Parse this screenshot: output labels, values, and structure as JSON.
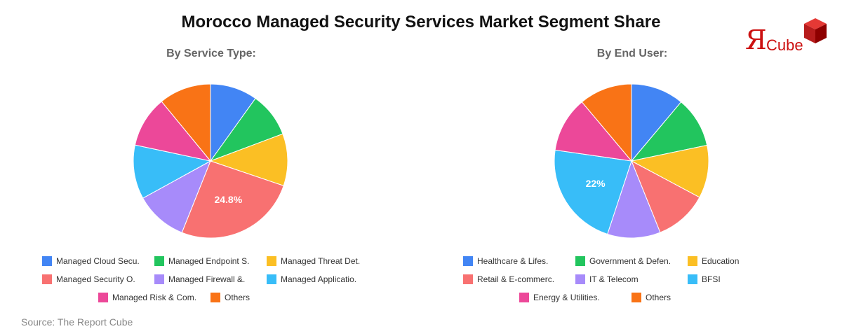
{
  "title": "Morocco Managed Security Services Market Segment Share",
  "source": "Source: The Report Cube",
  "logo": {
    "mark": "Я",
    "text": "Cube"
  },
  "chart_data": [
    {
      "type": "pie",
      "title": "By Service Type:",
      "categories": [
        "Managed Cloud Secu.",
        "Managed Endpoint S.",
        "Managed Threat Det.",
        "Managed Security O.",
        "Managed Firewall &.",
        "Managed Applicatio.",
        "Managed Risk & Com.",
        "Others"
      ],
      "slice_order": [
        "Managed Cloud Secu.",
        "Managed Endpoint S.",
        "Managed Threat Det.",
        "Managed Security O.",
        "Managed Firewall &.",
        "Managed Applicatio.",
        "Managed Risk & Com.",
        "Others"
      ],
      "values": [
        9.5,
        9.0,
        10.5,
        24.8,
        10.5,
        10.9,
        10.3,
        10.5
      ],
      "colors": [
        "#4285f4",
        "#22c55e",
        "#fbbf24",
        "#f87171",
        "#a78bfa",
        "#38bdf8",
        "#ec4899",
        "#f97316"
      ],
      "labeled": {
        "Managed Security O.": "24.8%"
      },
      "legend": "bottom"
    },
    {
      "type": "pie",
      "title": "By End User:",
      "categories": [
        "Healthcare & Lifes.",
        "Government & Defen.",
        "Education",
        "Retail & E-commerc.",
        "IT & Telecom",
        "BFSI",
        "Energy & Utilities.",
        "Others"
      ],
      "slice_order": [
        "Healthcare & Lifes.",
        "Government & Defen.",
        "Education",
        "Retail & E-commerc.",
        "IT & Telecom",
        "BFSI",
        "Energy & Utilities.",
        "Others"
      ],
      "values": [
        11.0,
        10.5,
        11.0,
        11.0,
        11.0,
        22.0,
        11.5,
        11.0
      ],
      "colors": [
        "#4285f4",
        "#22c55e",
        "#fbbf24",
        "#f87171",
        "#a78bfa",
        "#38bdf8",
        "#ec4899",
        "#f97316"
      ],
      "labeled": {
        "BFSI": "22%"
      },
      "legend": "bottom"
    }
  ]
}
